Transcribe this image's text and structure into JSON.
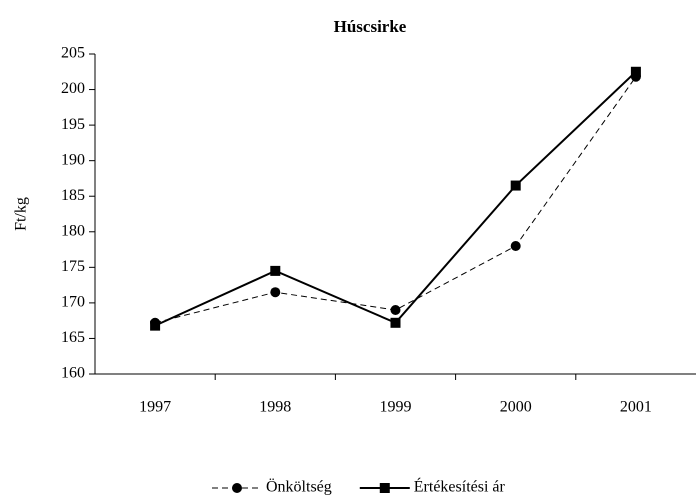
{
  "chart_data": {
    "type": "line",
    "title": "Húscsirke",
    "y_label": "Ft/kg",
    "categories": [
      "1997",
      "1998",
      "1999",
      "2000",
      "2001"
    ],
    "series": [
      {
        "name": "Önköltség",
        "color": "#000000",
        "line_style": "dashed",
        "marker": "circle",
        "values": [
          167.2,
          171.5,
          169,
          178,
          201.8
        ]
      },
      {
        "name": "Értékesítési ár",
        "color": "#000000",
        "line_style": "solid",
        "marker": "square",
        "values": [
          166.8,
          174.5,
          167.2,
          186.5,
          202.5
        ]
      }
    ],
    "ylim": [
      160,
      205
    ],
    "yticks": [
      160,
      165,
      170,
      175,
      180,
      185,
      190,
      195,
      200,
      205
    ],
    "grid": false,
    "legend": "bottom"
  }
}
